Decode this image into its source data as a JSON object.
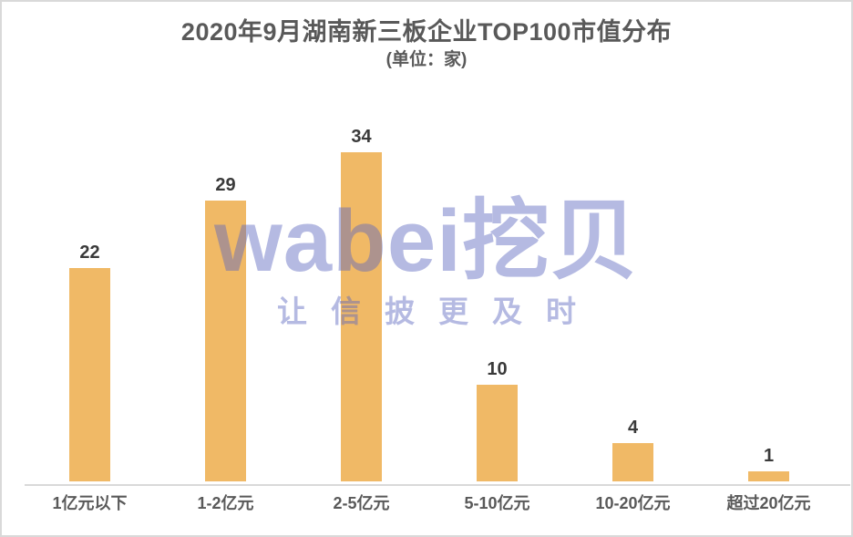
{
  "chart_data": {
    "type": "bar",
    "title": "2020年9月湖南新三板企业TOP100市值分布",
    "subtitle": "(单位：家)",
    "categories": [
      "1亿元以下",
      "1-2亿元",
      "2-5亿元",
      "5-10亿元",
      "10-20亿元",
      "超过20亿元"
    ],
    "values": [
      22,
      29,
      34,
      10,
      4,
      1
    ],
    "xlabel": "",
    "ylabel": "",
    "ylim": [
      0,
      34
    ],
    "grid": false,
    "legend_position": "none",
    "value_labels_shown": true,
    "bar_color": "#F0B966",
    "value_label_color": "#3A3A3A",
    "category_label_color": "#595959",
    "axis_line_color": "#D9D9D9",
    "title_color": "#595959"
  },
  "watermark": {
    "logo": "wabei挖贝",
    "slogan": "让信披更及时",
    "color_rgba": "rgba(90,102,190,0.45)"
  }
}
